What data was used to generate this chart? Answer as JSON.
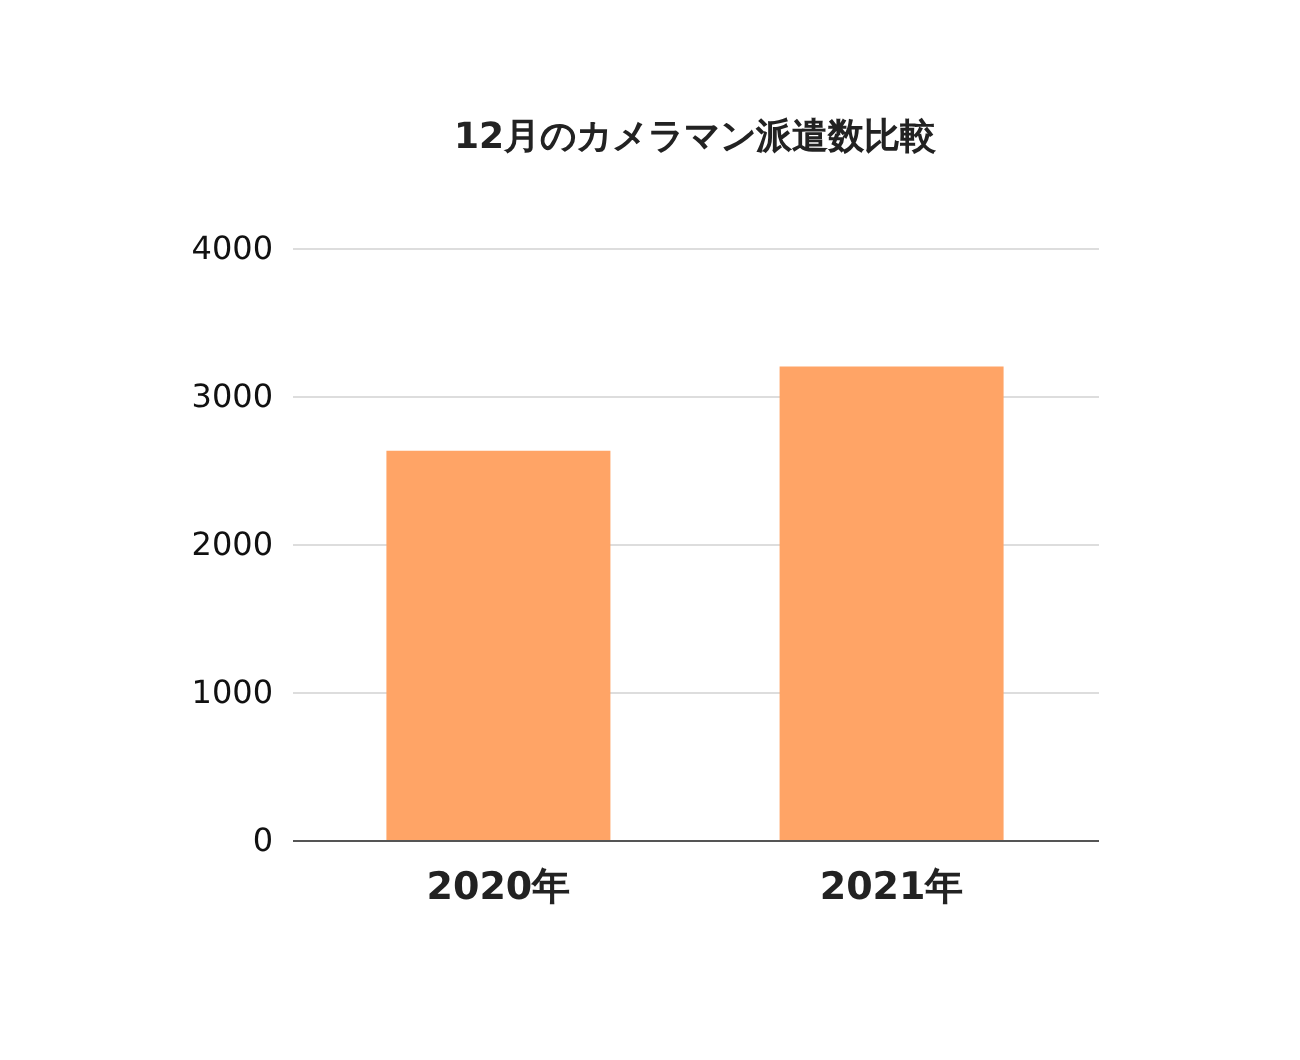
{
  "chart_data": {
    "type": "bar",
    "title": "12月のカメラマン派遣数比較",
    "categories": [
      "2020年",
      "2021年"
    ],
    "series": [
      {
        "color": "#ffa466",
        "values": [
          2630,
          3200
        ]
      }
    ],
    "ylim": [
      0,
      4000
    ],
    "yticks": [
      0,
      1000,
      2000,
      3000,
      4000
    ],
    "grid": "y"
  }
}
